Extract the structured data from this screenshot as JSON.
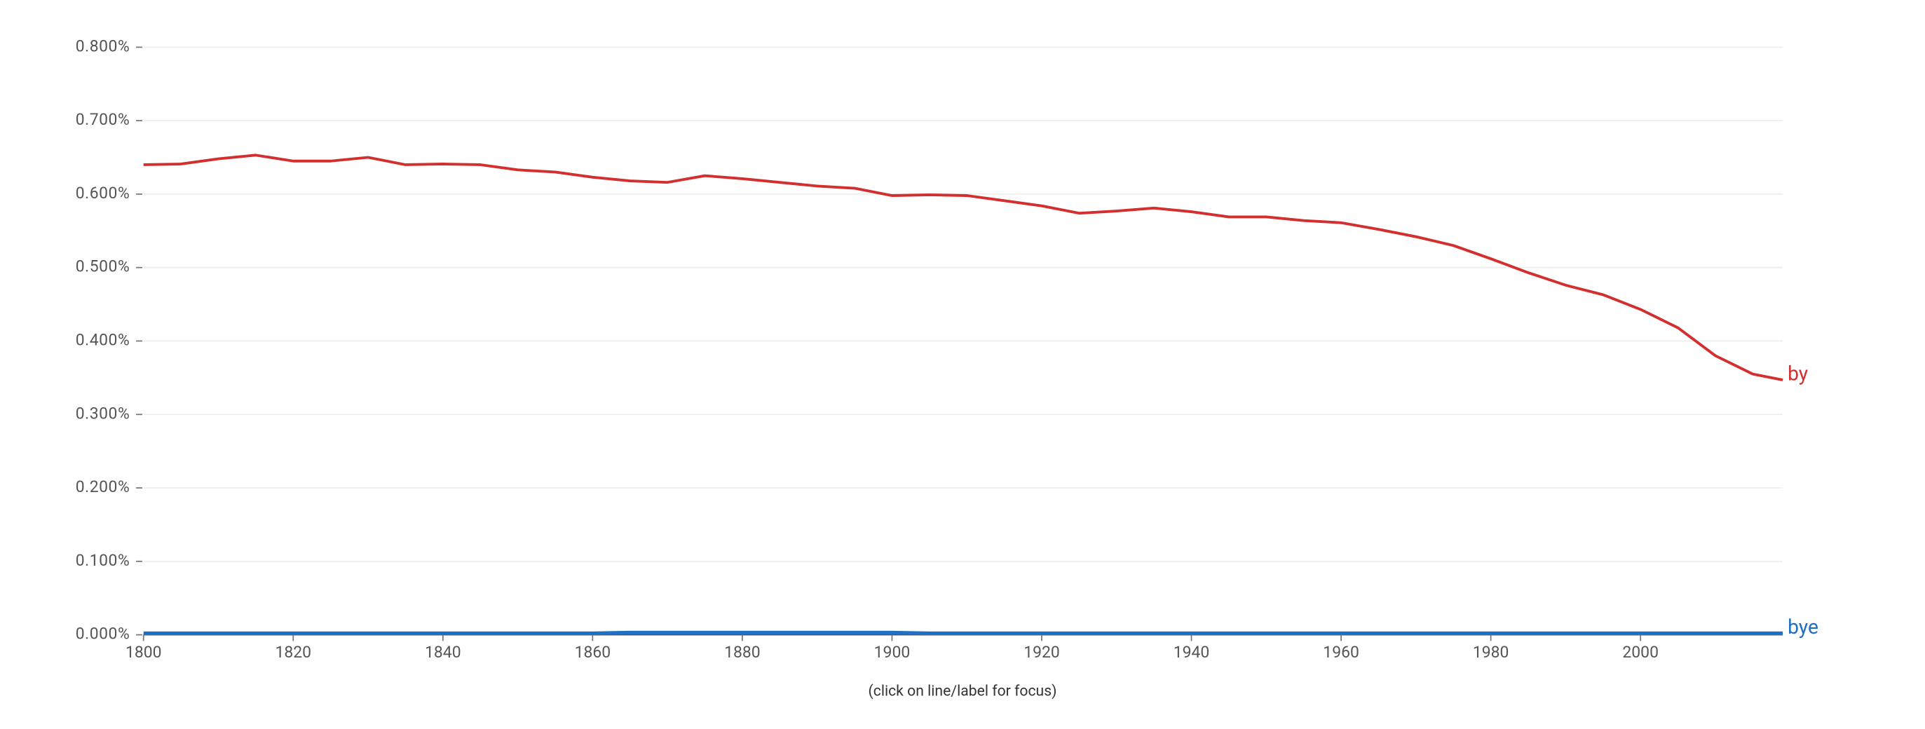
{
  "chart_data": {
    "type": "line",
    "note": "(click on line/label for focus)",
    "x": [
      1800,
      1805,
      1810,
      1815,
      1820,
      1825,
      1830,
      1835,
      1840,
      1845,
      1850,
      1855,
      1860,
      1865,
      1870,
      1875,
      1880,
      1885,
      1890,
      1895,
      1900,
      1905,
      1910,
      1915,
      1920,
      1925,
      1930,
      1935,
      1940,
      1945,
      1950,
      1955,
      1960,
      1965,
      1970,
      1975,
      1980,
      1985,
      1990,
      1995,
      2000,
      2005,
      2010,
      2015,
      2019
    ],
    "series": [
      {
        "name": "by",
        "color": "#d32f2f",
        "values": [
          0.64,
          0.641,
          0.648,
          0.653,
          0.645,
          0.645,
          0.65,
          0.64,
          0.641,
          0.64,
          0.633,
          0.63,
          0.623,
          0.618,
          0.616,
          0.625,
          0.621,
          0.616,
          0.611,
          0.608,
          0.598,
          0.599,
          0.598,
          0.591,
          0.584,
          0.574,
          0.577,
          0.581,
          0.576,
          0.569,
          0.569,
          0.564,
          0.561,
          0.552,
          0.542,
          0.53,
          0.512,
          0.493,
          0.476,
          0.463,
          0.443,
          0.418,
          0.38,
          0.355,
          0.347
        ]
      },
      {
        "name": "bye",
        "color": "#1f6fc5",
        "values": [
          0.002,
          0.002,
          0.002,
          0.002,
          0.002,
          0.002,
          0.002,
          0.002,
          0.002,
          0.002,
          0.002,
          0.002,
          0.002,
          0.003,
          0.003,
          0.003,
          0.003,
          0.003,
          0.003,
          0.003,
          0.003,
          0.002,
          0.002,
          0.002,
          0.002,
          0.002,
          0.002,
          0.002,
          0.002,
          0.002,
          0.002,
          0.002,
          0.002,
          0.002,
          0.002,
          0.002,
          0.002,
          0.002,
          0.002,
          0.002,
          0.002,
          0.002,
          0.002,
          0.002,
          0.002
        ]
      }
    ],
    "xlim": [
      1800,
      2019
    ],
    "xticks": [
      1800,
      1820,
      1840,
      1860,
      1880,
      1900,
      1920,
      1940,
      1960,
      1980,
      2000
    ],
    "ylim": [
      0,
      0.8
    ],
    "yticks": [
      {
        "value": 0,
        "label": "0.000%"
      },
      {
        "value": 0.1,
        "label": "0.100%"
      },
      {
        "value": 0.2,
        "label": "0.200%"
      },
      {
        "value": 0.3,
        "label": "0.300%"
      },
      {
        "value": 0.4,
        "label": "0.400%"
      },
      {
        "value": 0.5,
        "label": "0.500%"
      },
      {
        "value": 0.6,
        "label": "0.600%"
      },
      {
        "value": 0.7,
        "label": "0.700%"
      },
      {
        "value": 0.8,
        "label": "0.800%"
      }
    ],
    "grid": true
  }
}
